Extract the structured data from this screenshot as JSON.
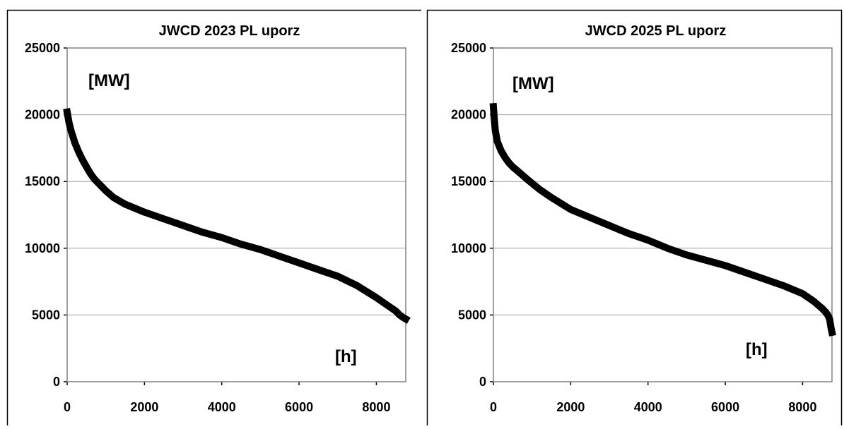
{
  "charts": [
    {
      "title": "JWCD 2023 PL uporz",
      "unit_label": "[MW]",
      "x_unit_label": "[h]",
      "chart_data": {
        "type": "line",
        "title": "JWCD 2023 PL uporz",
        "xlabel": "[h]",
        "ylabel": "[MW]",
        "xlim": [
          0,
          8760
        ],
        "ylim": [
          0,
          25000
        ],
        "x_ticks": [
          0,
          2000,
          4000,
          6000,
          8000
        ],
        "y_ticks": [
          0,
          5000,
          10000,
          15000,
          20000,
          25000
        ],
        "grid": "horizontal",
        "series": [
          {
            "color": "#000000",
            "x": [
              0,
              50,
              100,
              200,
              300,
              400,
              500,
              600,
              700,
              800,
              1000,
              1200,
              1500,
              2000,
              2500,
              3000,
              3500,
              4000,
              4500,
              5000,
              5500,
              6000,
              6500,
              7000,
              7500,
              8000,
              8300,
              8500,
              8600,
              8700,
              8760
            ],
            "y": [
              20200,
              19400,
              18800,
              17900,
              17200,
              16600,
              16100,
              15600,
              15200,
              14900,
              14300,
              13800,
              13300,
              12700,
              12200,
              11700,
              11200,
              10800,
              10300,
              9900,
              9400,
              8900,
              8400,
              7900,
              7200,
              6300,
              5700,
              5300,
              5000,
              4800,
              4700
            ]
          }
        ]
      }
    },
    {
      "title": "JWCD 2025 PL uporz",
      "unit_label": "[MW]",
      "x_unit_label": "[h]",
      "chart_data": {
        "type": "line",
        "title": "JWCD 2025 PL uporz",
        "xlabel": "[h]",
        "ylabel": "[MW]",
        "xlim": [
          0,
          8760
        ],
        "ylim": [
          0,
          25000
        ],
        "x_ticks": [
          0,
          2000,
          4000,
          6000,
          8000
        ],
        "y_ticks": [
          0,
          5000,
          10000,
          15000,
          20000,
          25000
        ],
        "grid": "horizontal",
        "series": [
          {
            "color": "#000000",
            "x": [
              0,
              20,
              50,
              100,
              200,
              300,
              400,
              500,
              700,
              900,
              1200,
              1500,
              2000,
              2500,
              3000,
              3500,
              4000,
              4500,
              5000,
              5500,
              6000,
              6500,
              7000,
              7500,
              8000,
              8300,
              8500,
              8600,
              8650,
              8700,
              8730,
              8760
            ],
            "y": [
              20600,
              19800,
              18800,
              18000,
              17300,
              16800,
              16400,
              16100,
              15600,
              15100,
              14400,
              13800,
              12900,
              12300,
              11700,
              11100,
              10600,
              10000,
              9500,
              9100,
              8700,
              8200,
              7700,
              7200,
              6600,
              6000,
              5500,
              5200,
              5000,
              4700,
              4100,
              3700
            ]
          }
        ]
      }
    }
  ]
}
